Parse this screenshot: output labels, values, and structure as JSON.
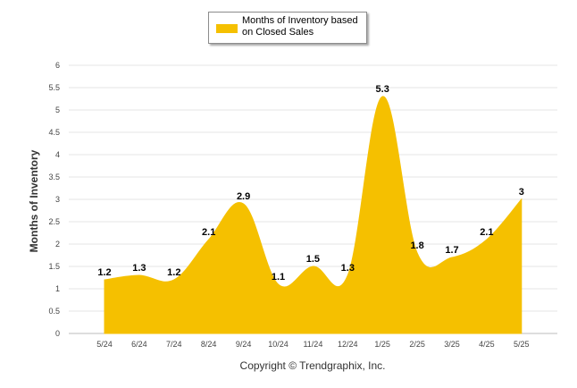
{
  "chart_data": {
    "type": "area",
    "categories": [
      "5/24",
      "6/24",
      "7/24",
      "8/24",
      "9/24",
      "10/24",
      "11/24",
      "12/24",
      "1/25",
      "2/25",
      "3/25",
      "4/25",
      "5/25"
    ],
    "series": [
      {
        "name": "Months of Inventory based on Closed Sales",
        "values": [
          1.2,
          1.3,
          1.2,
          2.1,
          2.9,
          1.1,
          1.5,
          1.3,
          5.3,
          1.8,
          1.7,
          2.1,
          3
        ]
      }
    ],
    "ylabel": "Months of Inventory",
    "ylim": [
      0,
      6
    ],
    "yticks": [
      "0",
      "0.5",
      "1",
      "1.5",
      "2",
      "2.5",
      "3",
      "3.5",
      "4",
      "4.5",
      "5",
      "5.5",
      "6"
    ],
    "grid": true,
    "legend_position": "top-center",
    "series_color": "#F5C000"
  },
  "legend": {
    "label": "Months of Inventory based on Closed Sales"
  },
  "footer": {
    "copyright": "Copyright © Trendgraphix, Inc."
  }
}
